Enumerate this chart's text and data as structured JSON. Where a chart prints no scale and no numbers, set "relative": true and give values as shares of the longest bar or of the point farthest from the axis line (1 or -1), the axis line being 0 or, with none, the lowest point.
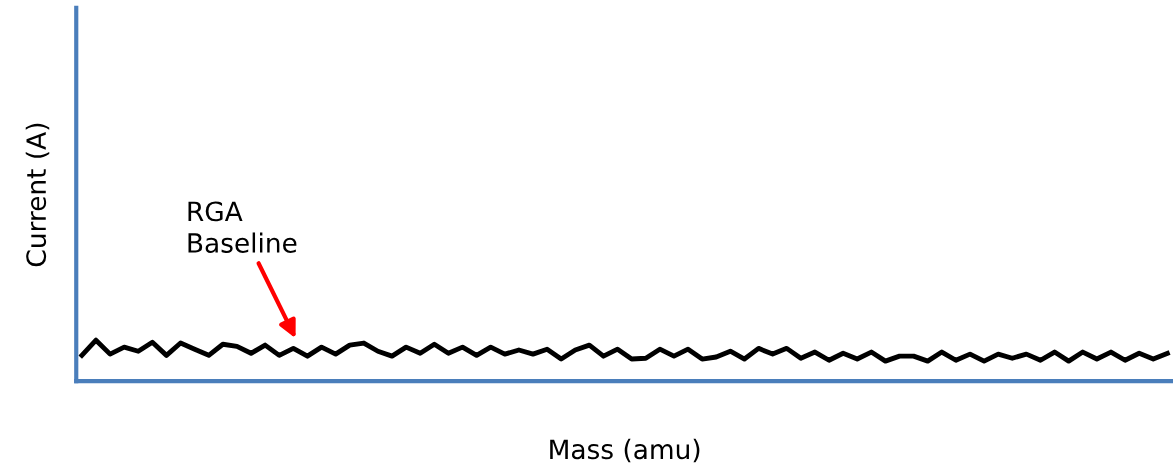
{
  "chart_data": {
    "type": "line",
    "relative": true,
    "xlabel": "Mass (amu)",
    "ylabel": "Current (A)",
    "annotations": [
      "RGA\nBaseline"
    ],
    "categories": [
      null,
      null,
      null,
      null,
      null,
      null,
      null,
      null,
      null,
      null,
      null,
      null,
      null,
      null,
      null,
      null,
      null,
      null,
      null,
      null,
      null,
      null,
      null,
      null,
      null,
      null,
      null,
      null,
      null,
      null,
      null,
      null,
      null,
      null,
      null,
      null,
      null,
      null,
      null,
      null,
      null,
      null,
      null,
      null,
      null,
      null,
      null,
      null,
      null,
      null,
      null,
      null,
      null,
      null,
      null,
      null,
      null,
      null,
      null,
      null,
      null,
      null,
      null,
      null,
      null,
      null,
      null,
      null,
      null,
      null,
      null,
      null,
      null,
      null,
      null,
      null,
      null,
      null
    ],
    "series": [
      {
        "color": "#000000",
        "values": [
          0.63,
          1,
          0.66,
          0.83,
          0.73,
          0.95,
          0.63,
          0.93,
          0.78,
          0.63,
          0.9,
          0.85,
          0.68,
          0.88,
          0.63,
          0.8,
          0.61,
          0.83,
          0.66,
          0.88,
          0.93,
          0.73,
          0.61,
          0.83,
          0.68,
          0.9,
          0.68,
          0.83,
          0.63,
          0.83,
          0.66,
          0.76,
          0.66,
          0.78,
          0.54,
          0.76,
          0.88,
          0.61,
          0.78,
          0.54,
          0.56,
          0.78,
          0.61,
          0.78,
          0.54,
          0.59,
          0.73,
          0.54,
          0.8,
          0.66,
          0.8,
          0.56,
          0.71,
          0.51,
          0.68,
          0.54,
          0.71,
          0.49,
          0.61,
          0.61,
          0.49,
          0.71,
          0.51,
          0.66,
          0.49,
          0.66,
          0.56,
          0.66,
          0.51,
          0.71,
          0.49,
          0.71,
          0.54,
          0.71,
          0.51,
          0.68,
          0.54,
          0.68
        ]
      }
    ],
    "grid": false,
    "legend": false,
    "marker": "none",
    "line_style": "solid"
  }
}
